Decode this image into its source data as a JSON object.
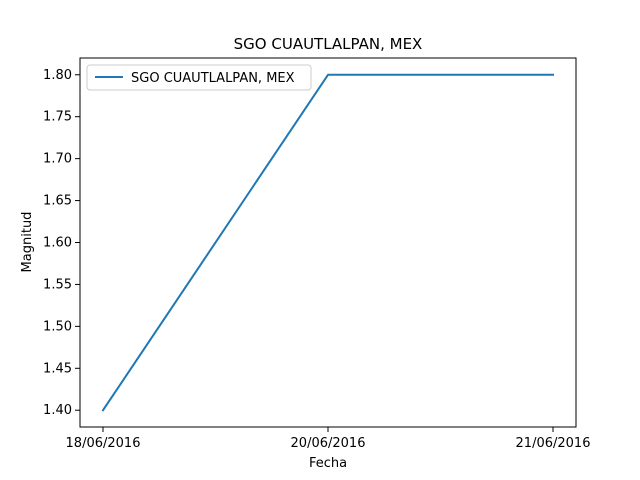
{
  "chart_data": {
    "type": "line",
    "title": "SGO CUAUTLALPAN, MEX",
    "xlabel": "Fecha",
    "ylabel": "Magnitud",
    "x": [
      "18/06/2016",
      "20/06/2016",
      "21/06/2016"
    ],
    "series": [
      {
        "name": "SGO CUAUTLALPAN, MEX",
        "values": [
          1.4,
          1.8,
          1.8
        ],
        "color": "#1f77b4"
      }
    ],
    "ylim": [
      1.38,
      1.82
    ],
    "y_ticks": [
      "1.40",
      "1.45",
      "1.50",
      "1.55",
      "1.60",
      "1.65",
      "1.70",
      "1.75",
      "1.80"
    ],
    "grid": false,
    "legend_position": "top-left"
  }
}
